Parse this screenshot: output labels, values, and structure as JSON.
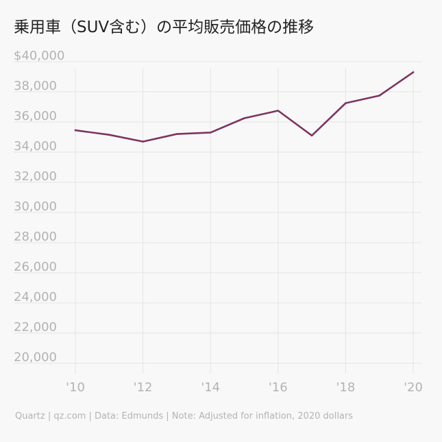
{
  "title": "乗用車（SUV含む）の平均販売価格の推移",
  "footer": "Quartz | qz.com | Data: Edmunds | Note: Adjusted for inflation, 2020 dollars",
  "colors": {
    "line": "#7d3460",
    "grid": "#e3e3e3",
    "tick_text": "#b3b3b3",
    "title": "#222222",
    "background": "#f8f8f8"
  },
  "chart_data": {
    "type": "line",
    "x": [
      2010,
      2011,
      2012,
      2013,
      2014,
      2015,
      2016,
      2017,
      2018,
      2019,
      2020
    ],
    "x_tick_values": [
      2010,
      2012,
      2014,
      2016,
      2018,
      2020
    ],
    "x_tick_labels": [
      "'10",
      "'12",
      "'14",
      "'16",
      "'18",
      "'20"
    ],
    "y_tick_values": [
      20000,
      22000,
      24000,
      26000,
      28000,
      30000,
      32000,
      34000,
      36000,
      38000,
      40000
    ],
    "y_tick_labels": [
      "20,000",
      "22,000",
      "24,000",
      "26,000",
      "28,000",
      "30,000",
      "32,000",
      "34,000",
      "36,000",
      "38,000",
      "$40,000"
    ],
    "series": [
      {
        "values": [
          35450,
          35150,
          34700,
          35200,
          35300,
          36250,
          36750,
          35100,
          37250,
          37750,
          39300
        ]
      }
    ],
    "ylim": [
      19500,
      40000
    ],
    "xlim": [
      2010,
      2020
    ],
    "grid": true,
    "legend": "none"
  }
}
